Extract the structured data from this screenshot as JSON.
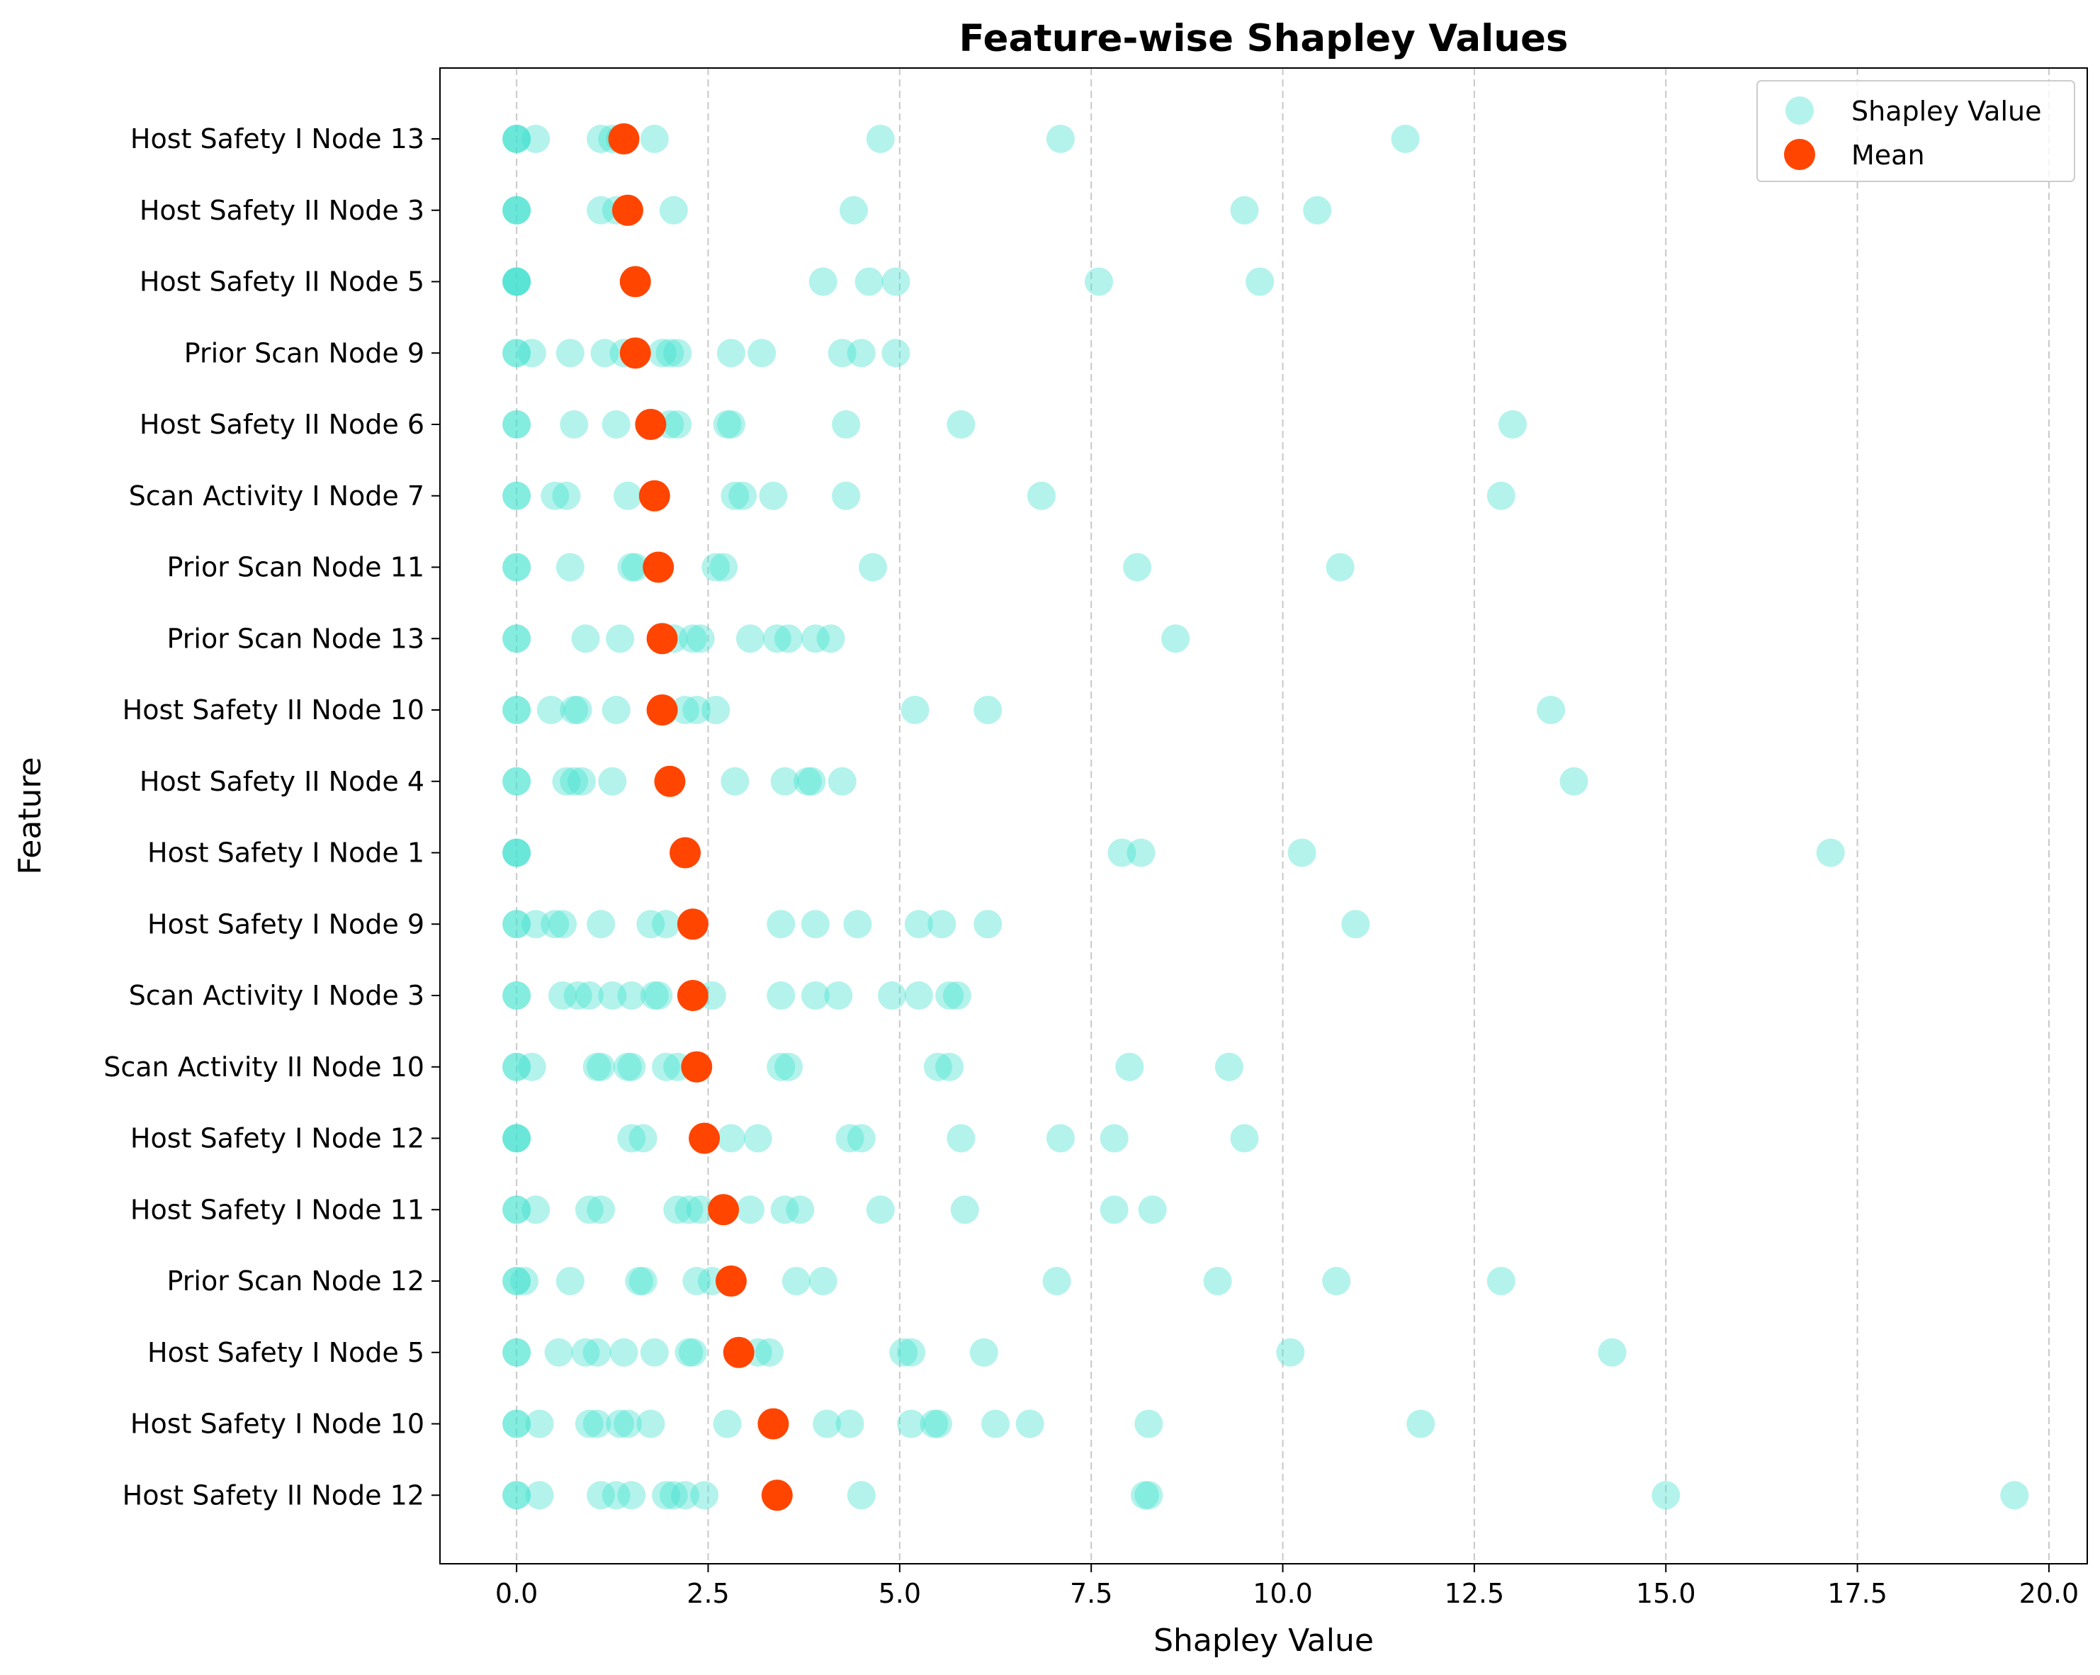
{
  "chart_data": {
    "type": "scatter",
    "title": "Feature-wise Shapley Values",
    "xlabel": "Shapley Value",
    "ylabel": "Feature",
    "xlim": [
      -1.0,
      20.5
    ],
    "xticks": [
      "0.0",
      "2.5",
      "5.0",
      "7.5",
      "10.0",
      "12.5",
      "15.0",
      "17.5",
      "20.0"
    ],
    "xtick_values": [
      0,
      2.5,
      5,
      7.5,
      10,
      12.5,
      15,
      17.5,
      20
    ],
    "grid": "x-dashed",
    "legend_position": "top-right",
    "colors": {
      "shapley": "#40E0D0",
      "mean": "#FF4500"
    },
    "series": [
      {
        "name": "Shapley Value",
        "marker": "circle",
        "alpha": 0.4
      },
      {
        "name": "Mean",
        "marker": "circle",
        "alpha": 1.0
      }
    ],
    "features": [
      {
        "name": "Host Safety I Node 13",
        "mean": 1.4,
        "values": [
          0,
          0,
          0,
          0.25,
          1.1,
          1.25,
          1.35,
          1.8,
          4.75,
          7.1,
          11.6
        ]
      },
      {
        "name": "Host Safety II Node 3",
        "mean": 1.45,
        "values": [
          0,
          0,
          0,
          1.1,
          1.3,
          2.05,
          4.4,
          9.5,
          10.45
        ]
      },
      {
        "name": "Host Safety II Node 5",
        "mean": 1.55,
        "values": [
          0,
          0,
          0,
          0,
          4.0,
          4.6,
          4.95,
          7.6,
          9.7
        ]
      },
      {
        "name": "Prior Scan Node 9",
        "mean": 1.55,
        "values": [
          0,
          0,
          0.2,
          0.7,
          1.15,
          1.4,
          1.9,
          2.0,
          2.1,
          2.8,
          3.2,
          4.25,
          4.5,
          4.95
        ]
      },
      {
        "name": "Host Safety II Node 6",
        "mean": 1.75,
        "values": [
          0,
          0,
          0.75,
          1.3,
          2.0,
          2.1,
          2.75,
          2.8,
          4.3,
          5.8,
          13.0
        ]
      },
      {
        "name": "Scan Activity I Node 7",
        "mean": 1.8,
        "values": [
          0,
          0,
          0.5,
          0.65,
          1.45,
          2.85,
          2.95,
          3.35,
          4.3,
          6.85,
          12.85
        ]
      },
      {
        "name": "Prior Scan Node 11",
        "mean": 1.85,
        "values": [
          0,
          0,
          0.7,
          1.5,
          1.55,
          2.6,
          2.7,
          4.65,
          8.1,
          10.75
        ]
      },
      {
        "name": "Prior Scan Node 13",
        "mean": 1.9,
        "values": [
          0,
          0,
          0.9,
          1.35,
          2.05,
          2.3,
          2.4,
          3.05,
          3.4,
          3.55,
          3.9,
          4.1,
          8.6
        ]
      },
      {
        "name": "Host Safety II Node 10",
        "mean": 1.9,
        "values": [
          0,
          0,
          0.45,
          0.75,
          0.8,
          1.3,
          2.2,
          2.35,
          2.6,
          5.2,
          6.15,
          13.5
        ]
      },
      {
        "name": "Host Safety II Node 4",
        "mean": 2.0,
        "values": [
          0,
          0,
          0.65,
          0.75,
          0.85,
          1.25,
          2.85,
          3.5,
          3.8,
          3.85,
          4.25,
          13.8
        ]
      },
      {
        "name": "Host Safety I Node 1",
        "mean": 2.2,
        "values": [
          0,
          0,
          0,
          7.9,
          8.15,
          10.25,
          17.15
        ]
      },
      {
        "name": "Host Safety I Node 9",
        "mean": 2.3,
        "values": [
          0,
          0,
          0.25,
          0.5,
          0.6,
          1.1,
          1.75,
          1.95,
          3.45,
          3.9,
          4.45,
          5.25,
          5.55,
          6.15,
          10.95
        ]
      },
      {
        "name": "Scan Activity I Node 3",
        "mean": 2.3,
        "values": [
          0,
          0,
          0.6,
          0.8,
          0.95,
          1.25,
          1.5,
          1.8,
          1.85,
          2.55,
          3.45,
          3.9,
          4.2,
          4.9,
          5.25,
          5.65,
          5.75
        ]
      },
      {
        "name": "Scan Activity II Node 10",
        "mean": 2.35,
        "values": [
          0,
          0,
          0.2,
          1.05,
          1.1,
          1.45,
          1.5,
          1.95,
          2.1,
          3.45,
          3.55,
          5.5,
          5.65,
          8.0,
          9.3
        ]
      },
      {
        "name": "Host Safety I Node 12",
        "mean": 2.45,
        "values": [
          0,
          0,
          0,
          1.5,
          1.65,
          2.8,
          3.15,
          4.35,
          4.5,
          5.8,
          7.1,
          7.8,
          9.5
        ]
      },
      {
        "name": "Host Safety I Node 11",
        "mean": 2.7,
        "values": [
          0,
          0,
          0.25,
          0.95,
          1.1,
          2.1,
          2.25,
          2.4,
          3.05,
          3.5,
          3.7,
          4.75,
          5.85,
          7.8,
          8.3
        ]
      },
      {
        "name": "Prior Scan Node 12",
        "mean": 2.8,
        "values": [
          0,
          0,
          0.1,
          0.7,
          1.6,
          1.65,
          2.35,
          2.55,
          3.65,
          4.0,
          7.05,
          9.15,
          10.7,
          12.85
        ]
      },
      {
        "name": "Host Safety I Node 5",
        "mean": 2.9,
        "values": [
          0,
          0,
          0.55,
          0.9,
          1.05,
          1.4,
          1.8,
          2.25,
          2.3,
          3.15,
          3.3,
          5.05,
          5.15,
          6.1,
          10.1,
          14.3
        ]
      },
      {
        "name": "Host Safety I Node 10",
        "mean": 3.35,
        "values": [
          0,
          0,
          0.3,
          0.95,
          1.05,
          1.35,
          1.45,
          1.75,
          2.75,
          4.05,
          4.35,
          5.15,
          5.45,
          5.5,
          6.25,
          6.7,
          8.25,
          11.8
        ]
      },
      {
        "name": "Host Safety II Node 12",
        "mean": 3.4,
        "values": [
          0,
          0,
          0.3,
          1.1,
          1.3,
          1.5,
          1.95,
          2.05,
          2.2,
          2.45,
          4.5,
          8.2,
          8.25,
          15.0,
          19.55
        ]
      }
    ]
  }
}
